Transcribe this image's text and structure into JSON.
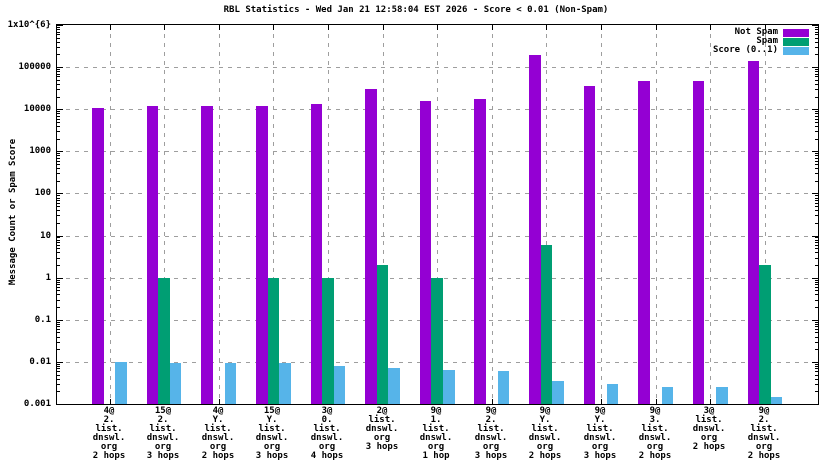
{
  "title": "RBL Statistics - Wed Jan 21 12:58:04 EST 2026 - Score < 0.01 (Non-Spam)",
  "ylabel": "Message Count or Spam Score",
  "colors": {
    "not_spam": "#9400d3",
    "spam": "#009e73",
    "score": "#56b4e9",
    "grid": "#9e9e9e",
    "border": "#000000"
  },
  "chart_data": {
    "type": "bar",
    "log_scale_y": true,
    "ylim": [
      0.001,
      1000000
    ],
    "grid": true,
    "legend_position": "top-right",
    "title": "RBL Statistics - Wed Jan 21 12:58:04 EST 2026 - Score < 0.01 (Non-Spam)",
    "xlabel": "",
    "ylabel": "Message Count or Spam Score",
    "ytick_labels": [
      "1x10^{6}",
      "100000",
      "10000",
      "1000",
      "100",
      "10",
      "1",
      "0.1",
      "0.01",
      "0.001"
    ],
    "ytick_values": [
      1000000,
      100000,
      10000,
      1000,
      100,
      10,
      1,
      0.1,
      0.01,
      0.001
    ],
    "categories": [
      "4@\n2.\nlist.\ndnswl.\norg\n2 hops",
      "15@\n2.\nlist.\ndnswl.\norg\n3 hops",
      "4@\nY.\nlist.\ndnswl.\norg\n2 hops",
      "15@\nY.\nlist.\ndnswl.\norg\n3 hops",
      "3@\n0.\nlist.\ndnswl.\norg\n4 hops",
      "2@\nlist.\ndnswl.\norg\n3 hops",
      "9@\n1.\nlist.\ndnswl.\norg\n1 hop",
      "9@\n2.\nlist.\ndnswl.\norg\n3 hops",
      "9@\nY.\nlist.\ndnswl.\norg\n2 hops",
      "9@\nY.\nlist.\ndnswl.\norg\n3 hops",
      "9@\n3.\nlist.\ndnswl.\norg\n2 hops",
      "3@\nlist.\ndnswl.\norg\n2 hops",
      "9@\n2.\nlist.\ndnswl.\norg\n2 hops"
    ],
    "series": [
      {
        "name": "Not Spam",
        "color": "#9400d3",
        "values": [
          11000,
          12000,
          12000,
          12000,
          13500,
          30000,
          16000,
          17500,
          190000,
          36000,
          46000,
          46000,
          140000
        ]
      },
      {
        "name": "Spam",
        "color": "#009e73",
        "values": [
          0,
          1,
          0,
          1,
          1,
          2,
          1,
          0,
          6,
          0,
          0,
          0,
          2
        ]
      },
      {
        "name": "Score (0..1)",
        "color": "#56b4e9",
        "values": [
          0.01,
          0.0095,
          0.0095,
          0.0095,
          0.008,
          0.007,
          0.0065,
          0.006,
          0.0035,
          0.003,
          0.0025,
          0.0025,
          0.0015
        ]
      }
    ]
  }
}
